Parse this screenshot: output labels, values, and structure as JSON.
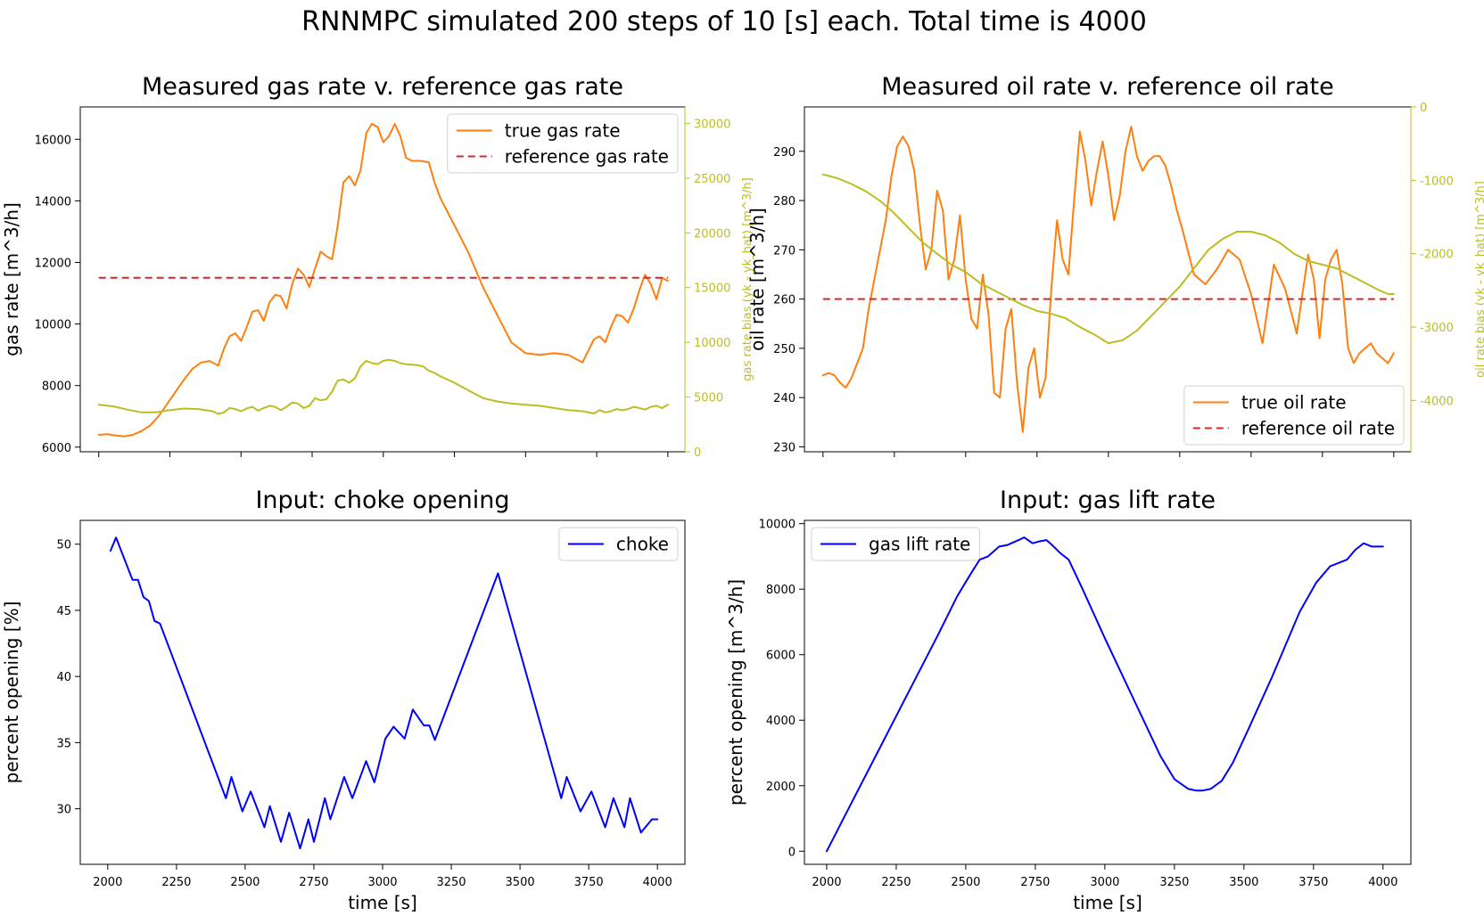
{
  "figure_title": "RNNMPC simulated 200 steps of 10 [s] each. Total time is 4000",
  "colors": {
    "true_rate": "#ff7f0e",
    "reference": "#d62728",
    "bias": "#bcbd22",
    "input": "#0000ff",
    "axis": "#000000"
  },
  "chart_data": [
    {
      "id": "gas",
      "type": "line",
      "title": "Measured gas rate v. reference gas rate",
      "xlabel": "",
      "ylabel": "gas rate [m^3/h]",
      "y2label": "gas rate bias (yk - yk_hat) [m^3/h]",
      "xlim": [
        1935,
        4060
      ],
      "ylim": [
        5850,
        17050
      ],
      "y2lim": [
        0,
        31500
      ],
      "xticks": [
        2000,
        2250,
        2500,
        2750,
        3000,
        3250,
        3500,
        3750,
        4000
      ],
      "show_xticklabels": false,
      "yticks": [
        6000,
        8000,
        10000,
        12000,
        14000,
        16000
      ],
      "y2ticks": [
        0,
        5000,
        10000,
        15000,
        20000,
        25000,
        30000
      ],
      "legend_position": "top-right",
      "series": [
        {
          "name": "true gas rate",
          "style": "solid",
          "color_key": "true_rate",
          "axis": "left",
          "x": [
            2000,
            2030,
            2060,
            2090,
            2120,
            2150,
            2180,
            2210,
            2240,
            2270,
            2300,
            2330,
            2360,
            2390,
            2420,
            2440,
            2460,
            2480,
            2500,
            2520,
            2540,
            2560,
            2580,
            2600,
            2620,
            2640,
            2660,
            2680,
            2700,
            2720,
            2740,
            2760,
            2780,
            2800,
            2820,
            2840,
            2860,
            2880,
            2900,
            2920,
            2940,
            2960,
            2980,
            3000,
            3020,
            3040,
            3060,
            3080,
            3100,
            3130,
            3160,
            3180,
            3200,
            3250,
            3300,
            3350,
            3400,
            3450,
            3500,
            3550,
            3600,
            3650,
            3700,
            3740,
            3760,
            3780,
            3800,
            3820,
            3840,
            3860,
            3880,
            3900,
            3920,
            3940,
            3960,
            3980,
            4000
          ],
          "values": [
            6400,
            6420,
            6380,
            6350,
            6400,
            6520,
            6700,
            7000,
            7400,
            7800,
            8200,
            8550,
            8750,
            8800,
            8650,
            9200,
            9600,
            9700,
            9450,
            9900,
            10400,
            10450,
            10100,
            10700,
            10950,
            10900,
            10500,
            11300,
            11800,
            11600,
            11200,
            11800,
            12350,
            12200,
            12100,
            13200,
            14600,
            14800,
            14500,
            15000,
            16200,
            16500,
            16400,
            15900,
            16100,
            16500,
            16100,
            15400,
            15300,
            15300,
            15250,
            14600,
            14100,
            13200,
            12300,
            11200,
            10300,
            9400,
            9050,
            9000,
            9050,
            9000,
            8750,
            9500,
            9600,
            9400,
            9900,
            10300,
            10250,
            10050,
            10500,
            11100,
            11600,
            11300,
            10800,
            11500,
            11400
          ]
        },
        {
          "name": "reference gas rate",
          "style": "dashed",
          "color_key": "reference",
          "axis": "left",
          "x": [
            2000,
            4000
          ],
          "values": [
            11500,
            11500
          ]
        },
        {
          "name": "",
          "style": "solid",
          "color_key": "bias",
          "axis": "right",
          "x": [
            2000,
            2050,
            2100,
            2150,
            2200,
            2250,
            2300,
            2350,
            2400,
            2420,
            2440,
            2460,
            2480,
            2500,
            2520,
            2540,
            2560,
            2580,
            2600,
            2620,
            2640,
            2660,
            2680,
            2700,
            2720,
            2740,
            2760,
            2780,
            2800,
            2820,
            2840,
            2860,
            2880,
            2900,
            2920,
            2940,
            2960,
            2980,
            3000,
            3020,
            3040,
            3060,
            3080,
            3100,
            3120,
            3140,
            3160,
            3180,
            3200,
            3250,
            3300,
            3350,
            3400,
            3450,
            3500,
            3550,
            3600,
            3650,
            3700,
            3740,
            3760,
            3780,
            3800,
            3820,
            3840,
            3860,
            3880,
            3900,
            3920,
            3940,
            3960,
            3980,
            4000
          ],
          "values": [
            4300,
            4150,
            3850,
            3600,
            3600,
            3800,
            3950,
            3900,
            3700,
            3450,
            3600,
            4000,
            3900,
            3700,
            3950,
            4100,
            3750,
            4000,
            4200,
            4100,
            3800,
            4100,
            4500,
            4400,
            4000,
            4200,
            4900,
            4700,
            4800,
            5500,
            6500,
            6600,
            6300,
            6700,
            7800,
            8300,
            8100,
            8000,
            8300,
            8400,
            8300,
            8100,
            8000,
            7950,
            7900,
            7800,
            7400,
            7200,
            6900,
            6300,
            5600,
            4900,
            4600,
            4400,
            4300,
            4200,
            4000,
            3800,
            3700,
            3500,
            3800,
            3600,
            3700,
            3900,
            3800,
            3900,
            4100,
            4000,
            3850,
            4100,
            4200,
            4000,
            4300
          ]
        }
      ]
    },
    {
      "id": "oil",
      "type": "line",
      "title": "Measured oil rate v. reference oil rate",
      "xlabel": "",
      "ylabel": "oil rate [m^3/h]",
      "y2label": "oil rate bias (yk - yk_hat) [m^3/h]",
      "xlim": [
        1935,
        4060
      ],
      "ylim": [
        229,
        299
      ],
      "y2lim": [
        -4700,
        0
      ],
      "xticks": [
        2000,
        2250,
        2500,
        2750,
        3000,
        3250,
        3500,
        3750,
        4000
      ],
      "show_xticklabels": false,
      "yticks": [
        230,
        240,
        250,
        260,
        270,
        280,
        290
      ],
      "y2ticks": [
        -4000,
        -3000,
        -2000,
        -1000,
        0
      ],
      "legend_position": "bottom-right",
      "series": [
        {
          "name": "true oil rate",
          "style": "solid",
          "color_key": "true_rate",
          "axis": "left",
          "x": [
            2000,
            2020,
            2040,
            2060,
            2080,
            2100,
            2120,
            2140,
            2160,
            2180,
            2200,
            2220,
            2240,
            2260,
            2280,
            2300,
            2320,
            2340,
            2360,
            2380,
            2400,
            2420,
            2440,
            2460,
            2480,
            2500,
            2520,
            2540,
            2560,
            2580,
            2600,
            2620,
            2640,
            2660,
            2680,
            2700,
            2720,
            2740,
            2760,
            2780,
            2800,
            2820,
            2840,
            2860,
            2880,
            2900,
            2920,
            2940,
            2960,
            2980,
            3000,
            3020,
            3040,
            3060,
            3080,
            3100,
            3120,
            3140,
            3160,
            3180,
            3200,
            3220,
            3240,
            3260,
            3300,
            3340,
            3380,
            3420,
            3460,
            3500,
            3540,
            3580,
            3620,
            3660,
            3700,
            3720,
            3740,
            3760,
            3780,
            3800,
            3820,
            3840,
            3860,
            3880,
            3900,
            3920,
            3940,
            3960,
            3980,
            4000
          ],
          "values": [
            244.5,
            245,
            244.5,
            243,
            242,
            244,
            247,
            250,
            258,
            264,
            270,
            276,
            285,
            291,
            293,
            291,
            286,
            275,
            266,
            270,
            282,
            278,
            264,
            268,
            277,
            264,
            256,
            254,
            265,
            257,
            241,
            240,
            254,
            258,
            243,
            233,
            246,
            250,
            240,
            244,
            262,
            276,
            268,
            265,
            280,
            294,
            288,
            279,
            286,
            292,
            285,
            276,
            281,
            290,
            295,
            289,
            286,
            288,
            289,
            289,
            287,
            283,
            278,
            274,
            265,
            263,
            266,
            270,
            268,
            261,
            251,
            267,
            262,
            253,
            269,
            264,
            252,
            264,
            268,
            270,
            263,
            250,
            247,
            249,
            250,
            251,
            249,
            248,
            247,
            249
          ]
        },
        {
          "name": "reference oil rate",
          "style": "dashed",
          "color_key": "reference",
          "axis": "left",
          "x": [
            2000,
            4000
          ],
          "values": [
            260,
            260
          ]
        },
        {
          "name": "",
          "style": "solid",
          "color_key": "bias",
          "axis": "right",
          "x": [
            2000,
            2050,
            2100,
            2150,
            2200,
            2250,
            2300,
            2350,
            2400,
            2450,
            2500,
            2550,
            2600,
            2650,
            2700,
            2750,
            2800,
            2850,
            2900,
            2950,
            3000,
            3050,
            3100,
            3150,
            3200,
            3250,
            3300,
            3350,
            3400,
            3450,
            3500,
            3550,
            3600,
            3650,
            3700,
            3750,
            3800,
            3850,
            3900,
            3950,
            3980,
            4000
          ],
          "values": [
            -920,
            -970,
            -1050,
            -1150,
            -1280,
            -1450,
            -1650,
            -1850,
            -2000,
            -2150,
            -2250,
            -2400,
            -2500,
            -2600,
            -2700,
            -2780,
            -2820,
            -2880,
            -3000,
            -3100,
            -3220,
            -3180,
            -3050,
            -2850,
            -2650,
            -2450,
            -2200,
            -1950,
            -1800,
            -1700,
            -1700,
            -1750,
            -1850,
            -2000,
            -2100,
            -2150,
            -2200,
            -2300,
            -2400,
            -2500,
            -2550,
            -2550
          ]
        }
      ]
    },
    {
      "id": "choke",
      "type": "line",
      "title": "Input: choke opening",
      "xlabel": "time [s]",
      "ylabel": "percent opening [%]",
      "xlim": [
        1900,
        4100
      ],
      "ylim": [
        25.8,
        51.8
      ],
      "xticks": [
        2000,
        2250,
        2500,
        2750,
        3000,
        3250,
        3500,
        3750,
        4000
      ],
      "show_xticklabels": true,
      "yticks": [
        30,
        35,
        40,
        45,
        50
      ],
      "legend_position": "top-right",
      "series": [
        {
          "name": "choke",
          "style": "solid",
          "color_key": "input",
          "axis": "left",
          "x": [
            2010,
            2030,
            2090,
            2110,
            2130,
            2150,
            2170,
            2190,
            2430,
            2450,
            2490,
            2520,
            2570,
            2590,
            2630,
            2660,
            2700,
            2730,
            2750,
            2790,
            2810,
            2860,
            2890,
            2940,
            2970,
            3010,
            3040,
            3080,
            3110,
            3150,
            3170,
            3190,
            3420,
            3650,
            3670,
            3720,
            3760,
            3810,
            3840,
            3880,
            3900,
            3940,
            3980,
            4000
          ],
          "values": [
            49.5,
            50.5,
            47.3,
            47.3,
            46,
            45.7,
            44.2,
            44,
            30.8,
            32.4,
            29.8,
            31.3,
            28.6,
            30.2,
            27.5,
            29.7,
            27,
            29.2,
            27.5,
            30.8,
            29.2,
            32.4,
            30.8,
            33.6,
            32,
            35.3,
            36.2,
            35.3,
            37.5,
            36.3,
            36.3,
            35.2,
            47.8,
            30.8,
            32.4,
            29.8,
            31.3,
            28.6,
            30.8,
            28.6,
            30.8,
            28.2,
            29.2,
            29.2
          ]
        }
      ]
    },
    {
      "id": "gaslift",
      "type": "line",
      "title": "Input: gas lift rate",
      "xlabel": "time [s]",
      "ylabel": "percent opening [m^3/h]",
      "xlim": [
        1920,
        4100
      ],
      "ylim": [
        -400,
        10100
      ],
      "xticks": [
        2000,
        2250,
        2500,
        2750,
        3000,
        3250,
        3500,
        3750,
        4000
      ],
      "show_xticklabels": true,
      "yticks": [
        0,
        2000,
        4000,
        6000,
        8000,
        10000
      ],
      "legend_position": "top-left",
      "series": [
        {
          "name": "gas lift rate",
          "style": "solid",
          "color_key": "input",
          "axis": "left",
          "x": [
            2000,
            2100,
            2200,
            2300,
            2400,
            2470,
            2520,
            2550,
            2580,
            2620,
            2650,
            2690,
            2710,
            2740,
            2760,
            2790,
            2810,
            2840,
            2870,
            2920,
            3000,
            3100,
            3200,
            3250,
            3300,
            3330,
            3350,
            3380,
            3420,
            3460,
            3520,
            3600,
            3700,
            3760,
            3810,
            3840,
            3870,
            3900,
            3930,
            3960,
            3990,
            4000
          ],
          "values": [
            0,
            1650,
            3300,
            4950,
            6600,
            7800,
            8500,
            8900,
            9000,
            9300,
            9350,
            9500,
            9580,
            9400,
            9450,
            9500,
            9350,
            9100,
            8900,
            8000,
            6500,
            4700,
            2900,
            2200,
            1900,
            1850,
            1850,
            1900,
            2150,
            2700,
            3800,
            5300,
            7300,
            8200,
            8700,
            8800,
            8900,
            9200,
            9400,
            9300,
            9300,
            9300
          ]
        }
      ]
    }
  ]
}
